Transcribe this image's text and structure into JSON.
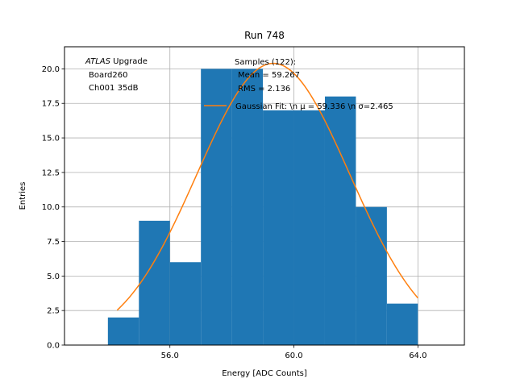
{
  "chart_data": {
    "type": "bar",
    "title": "Run 748",
    "xlabel": "Energy [ADC Counts]",
    "ylabel": "Entries",
    "xlim": [
      52.6,
      65.5
    ],
    "ylim": [
      0,
      21.6
    ],
    "grid": true,
    "bin_width": 1,
    "bins": [
      {
        "left": 54,
        "value": 2
      },
      {
        "left": 55,
        "value": 9
      },
      {
        "left": 56,
        "value": 6
      },
      {
        "left": 57,
        "value": 20
      },
      {
        "left": 58,
        "value": 20
      },
      {
        "left": 59,
        "value": 17
      },
      {
        "left": 60,
        "value": 17
      },
      {
        "left": 61,
        "value": 18
      },
      {
        "left": 62,
        "value": 10
      },
      {
        "left": 63,
        "value": 3
      }
    ],
    "fit": {
      "mean": 59.336,
      "sigma": 2.465,
      "amplitude": 20.4,
      "x_range": [
        54.3,
        64.0
      ]
    },
    "x_ticks": [
      56.0,
      60.0,
      64.0
    ],
    "x_tick_labels": [
      "56.0",
      "60.0",
      "64.0"
    ],
    "y_ticks": [
      0.0,
      2.5,
      5.0,
      7.5,
      10.0,
      12.5,
      15.0,
      17.5,
      20.0
    ],
    "y_tick_labels": [
      "0.0",
      "2.5",
      "5.0",
      "7.5",
      "10.0",
      "12.5",
      "15.0",
      "17.5",
      "20.0"
    ],
    "annotation": {
      "line1_italic": "ATLAS",
      "line1_rest": " Upgrade",
      "line2": "Board260",
      "line3": "Ch001 35dB"
    },
    "legend": {
      "placement": "top-center",
      "hist_line1": "Samples (122):",
      "hist_line2": "Mean = 59.267",
      "hist_line3": "RMS = 2.136",
      "fit_label": "Gaussian Fit: \\n μ = 59.336 \\n σ=2.465"
    },
    "colors": {
      "bars": "#1f77b4",
      "fit": "#ff7f0e"
    }
  }
}
